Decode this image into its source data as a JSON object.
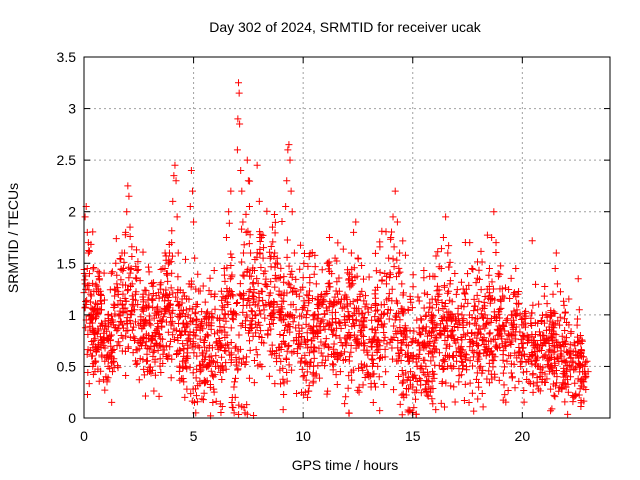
{
  "chart_data": {
    "type": "scatter",
    "title": "Day 302 of 2024, SRMTID for receiver ucak",
    "xlabel": "GPS time / hours",
    "ylabel": "SRMTID / TECUs",
    "xlim": [
      0,
      24
    ],
    "ylim": [
      0,
      3.5
    ],
    "xticks": [
      0,
      5,
      10,
      15,
      20
    ],
    "xtick_labels": [
      "0",
      "5",
      "10",
      "15",
      "20"
    ],
    "yticks": [
      0,
      0.5,
      1,
      1.5,
      2,
      2.5,
      3,
      3.5
    ],
    "ytick_labels": [
      "0",
      "0.5",
      "1",
      "1.5",
      "2",
      "2.5",
      "3",
      "3.5"
    ],
    "grid": true,
    "marker": "+",
    "color": "#ff0000",
    "series": [
      {
        "name": "SRMTID",
        "points": [
          [
            0.05,
            1.95
          ],
          [
            0.1,
            2.05
          ],
          [
            0.15,
            1.8
          ],
          [
            0.2,
            1.6
          ],
          [
            0.25,
            1.4
          ],
          [
            0.3,
            1.2
          ],
          [
            0.35,
            1.0
          ],
          [
            0.4,
            0.85
          ],
          [
            0.45,
            0.75
          ],
          [
            0.5,
            0.55
          ],
          [
            0.05,
            1.3
          ],
          [
            0.1,
            1.1
          ],
          [
            0.15,
            1.45
          ],
          [
            0.2,
            1.7
          ],
          [
            0.3,
            0.95
          ],
          [
            0.35,
            0.6
          ],
          [
            0.4,
            0.5
          ],
          [
            0.5,
            0.45
          ],
          [
            0.55,
            0.65
          ],
          [
            0.6,
            1.1
          ],
          [
            0.65,
            1.25
          ],
          [
            0.7,
            1.35
          ],
          [
            0.75,
            1.2
          ],
          [
            0.8,
            1.05
          ],
          [
            0.85,
            0.9
          ],
          [
            0.9,
            0.7
          ],
          [
            0.95,
            0.55
          ],
          [
            1.0,
            0.4
          ],
          [
            1.05,
            0.35
          ],
          [
            1.1,
            0.5
          ],
          [
            1.15,
            0.6
          ],
          [
            1.2,
            0.75
          ],
          [
            1.25,
            0.65
          ],
          [
            1.3,
            0.45
          ],
          [
            1.35,
            0.55
          ],
          [
            1.4,
            1.25
          ],
          [
            1.45,
            1.5
          ],
          [
            1.5,
            1.3
          ],
          [
            1.55,
            1.1
          ],
          [
            1.6,
            0.9
          ],
          [
            1.65,
            1.0
          ],
          [
            1.7,
            0.8
          ],
          [
            1.75,
            0.65
          ],
          [
            1.8,
            1.45
          ],
          [
            1.85,
            1.6
          ],
          [
            1.9,
            1.8
          ],
          [
            1.95,
            2.0
          ],
          [
            2.0,
            2.25
          ],
          [
            2.05,
            2.15
          ],
          [
            2.1,
            1.85
          ],
          [
            2.15,
            1.45
          ],
          [
            2.2,
            1.3
          ],
          [
            2.25,
            1.15
          ],
          [
            2.3,
            1.05
          ],
          [
            2.35,
            1.2
          ],
          [
            2.4,
            1.35
          ],
          [
            2.45,
            1.1
          ],
          [
            2.5,
            0.9
          ],
          [
            2.55,
            0.75
          ],
          [
            2.6,
            0.95
          ],
          [
            2.65,
            1.05
          ],
          [
            2.7,
            1.2
          ],
          [
            2.75,
            0.9
          ],
          [
            2.8,
            0.7
          ],
          [
            2.85,
            0.55
          ],
          [
            2.9,
            0.45
          ],
          [
            2.95,
            0.8
          ],
          [
            3.0,
            0.95
          ],
          [
            3.1,
            0.75
          ],
          [
            3.2,
            0.65
          ],
          [
            3.3,
            0.85
          ],
          [
            3.4,
            1.0
          ],
          [
            3.5,
            1.25
          ],
          [
            3.6,
            1.45
          ],
          [
            3.7,
            1.6
          ],
          [
            3.8,
            1.4
          ],
          [
            3.9,
            1.6
          ],
          [
            4.0,
            1.7
          ],
          [
            4.05,
            2.1
          ],
          [
            4.1,
            2.35
          ],
          [
            4.15,
            2.45
          ],
          [
            4.2,
            2.3
          ],
          [
            4.25,
            1.95
          ],
          [
            4.3,
            1.6
          ],
          [
            4.35,
            1.1
          ],
          [
            4.4,
            0.8
          ],
          [
            4.5,
            0.55
          ],
          [
            4.55,
            0.35
          ],
          [
            4.6,
            0.2
          ],
          [
            4.65,
            0.5
          ],
          [
            4.7,
            0.75
          ],
          [
            4.75,
            1.0
          ],
          [
            4.8,
            1.3
          ],
          [
            4.85,
            2.05
          ],
          [
            4.9,
            2.4
          ],
          [
            4.95,
            2.2
          ],
          [
            5.0,
            1.9
          ],
          [
            5.05,
            1.55
          ],
          [
            5.1,
            1.25
          ],
          [
            5.15,
            0.95
          ],
          [
            5.2,
            0.7
          ],
          [
            5.3,
            0.45
          ],
          [
            5.4,
            0.55
          ],
          [
            5.5,
            0.75
          ],
          [
            5.6,
            0.65
          ],
          [
            5.7,
            0.9
          ],
          [
            5.8,
            0.6
          ],
          [
            5.9,
            0.4
          ],
          [
            6.0,
            0.5
          ],
          [
            6.1,
            0.7
          ],
          [
            6.2,
            0.85
          ],
          [
            6.3,
            1.05
          ],
          [
            6.4,
            1.45
          ],
          [
            6.5,
            1.75
          ],
          [
            6.6,
            2.0
          ],
          [
            6.7,
            2.2
          ],
          [
            6.75,
            0.15
          ],
          [
            6.8,
            0.1
          ],
          [
            6.85,
            0.05
          ],
          [
            6.9,
            0.2
          ],
          [
            6.95,
            1.0
          ],
          [
            7.0,
            2.6
          ],
          [
            7.02,
            2.9
          ],
          [
            7.05,
            3.25
          ],
          [
            7.08,
            3.15
          ],
          [
            7.1,
            2.85
          ],
          [
            7.15,
            2.4
          ],
          [
            7.2,
            2.2
          ],
          [
            7.25,
            1.9
          ],
          [
            7.3,
            0.1
          ],
          [
            7.35,
            0.05
          ],
          [
            7.4,
            1.8
          ],
          [
            7.45,
            2.5
          ],
          [
            7.5,
            2.3
          ],
          [
            7.55,
            2.05
          ],
          [
            7.6,
            1.6
          ],
          [
            7.7,
            1.3
          ],
          [
            7.8,
            1.0
          ],
          [
            7.9,
            2.45
          ],
          [
            8.0,
            2.1
          ],
          [
            8.1,
            1.75
          ],
          [
            8.2,
            1.4
          ],
          [
            8.3,
            1.1
          ],
          [
            8.4,
            0.85
          ],
          [
            8.5,
            0.65
          ],
          [
            8.6,
            1.85
          ],
          [
            8.7,
            1.6
          ],
          [
            8.8,
            1.35
          ],
          [
            8.9,
            1.2
          ],
          [
            9.0,
            1.0
          ],
          [
            9.1,
            0.8
          ],
          [
            9.2,
            2.05
          ],
          [
            9.25,
            2.3
          ],
          [
            9.3,
            2.6
          ],
          [
            9.35,
            2.65
          ],
          [
            9.4,
            2.5
          ],
          [
            9.45,
            2.2
          ],
          [
            9.5,
            2.0
          ],
          [
            9.6,
            1.6
          ],
          [
            9.7,
            1.2
          ],
          [
            9.8,
            0.9
          ],
          [
            9.9,
            0.55
          ],
          [
            10.0,
            0.4
          ],
          [
            10.1,
            0.25
          ],
          [
            10.2,
            0.2
          ],
          [
            10.3,
            0.5
          ],
          [
            10.4,
            0.75
          ],
          [
            10.5,
            1.0
          ],
          [
            10.6,
            1.3
          ],
          [
            10.7,
            1.1
          ],
          [
            10.8,
            0.85
          ],
          [
            10.9,
            0.6
          ],
          [
            11.0,
            1.2
          ],
          [
            11.1,
            1.5
          ],
          [
            11.2,
            1.75
          ],
          [
            11.3,
            1.4
          ],
          [
            11.4,
            1.1
          ],
          [
            11.5,
            0.8
          ],
          [
            11.6,
            0.6
          ],
          [
            11.7,
            0.45
          ],
          [
            11.8,
            0.7
          ],
          [
            11.9,
            0.95
          ],
          [
            12.0,
            1.15
          ],
          [
            12.1,
            1.35
          ],
          [
            12.2,
            1.6
          ],
          [
            12.3,
            1.8
          ],
          [
            12.4,
            1.9
          ],
          [
            12.5,
            1.55
          ],
          [
            12.6,
            1.2
          ],
          [
            12.7,
            0.9
          ],
          [
            12.8,
            0.7
          ],
          [
            12.9,
            0.5
          ],
          [
            13.0,
            0.4
          ],
          [
            13.1,
            0.3
          ],
          [
            13.2,
            0.15
          ],
          [
            13.3,
            0.3
          ],
          [
            13.4,
            0.5
          ],
          [
            13.5,
            0.7
          ],
          [
            13.6,
            0.9
          ],
          [
            13.7,
            1.1
          ],
          [
            13.8,
            1.3
          ],
          [
            13.9,
            1.55
          ],
          [
            14.0,
            1.75
          ],
          [
            14.1,
            1.95
          ],
          [
            14.2,
            2.2
          ],
          [
            14.3,
            1.9
          ],
          [
            14.4,
            1.6
          ],
          [
            14.5,
            1.3
          ],
          [
            14.6,
            1.05
          ],
          [
            14.7,
            0.85
          ],
          [
            14.8,
            0.6
          ],
          [
            14.9,
            0.45
          ],
          [
            15.0,
            0.3
          ],
          [
            15.05,
            0.1
          ],
          [
            15.1,
            0.25
          ],
          [
            15.2,
            0.5
          ],
          [
            15.3,
            0.7
          ],
          [
            15.4,
            0.95
          ],
          [
            15.5,
            0.7
          ],
          [
            15.6,
            0.5
          ],
          [
            15.7,
            0.35
          ],
          [
            15.8,
            0.25
          ],
          [
            15.9,
            0.45
          ],
          [
            16.0,
            0.65
          ],
          [
            16.1,
            0.9
          ],
          [
            16.2,
            1.2
          ],
          [
            16.3,
            1.45
          ],
          [
            16.4,
            1.75
          ],
          [
            16.5,
            1.95
          ],
          [
            16.6,
            1.6
          ],
          [
            16.7,
            1.3
          ],
          [
            16.8,
            1.0
          ],
          [
            16.9,
            0.75
          ],
          [
            17.0,
            0.55
          ],
          [
            17.1,
            0.35
          ],
          [
            17.2,
            0.6
          ],
          [
            17.3,
            0.9
          ],
          [
            17.4,
            1.15
          ],
          [
            17.5,
            1.4
          ],
          [
            17.6,
            1.7
          ],
          [
            17.7,
            1.45
          ],
          [
            17.8,
            1.15
          ],
          [
            17.9,
            0.9
          ],
          [
            18.0,
            0.7
          ],
          [
            18.1,
            0.5
          ],
          [
            18.2,
            0.75
          ],
          [
            18.3,
            1.0
          ],
          [
            18.4,
            1.25
          ],
          [
            18.5,
            1.45
          ],
          [
            18.6,
            1.75
          ],
          [
            18.7,
            2.0
          ],
          [
            18.8,
            1.7
          ],
          [
            18.9,
            1.4
          ],
          [
            19.0,
            1.15
          ],
          [
            19.1,
            0.9
          ],
          [
            19.2,
            0.7
          ],
          [
            19.3,
            0.55
          ],
          [
            19.4,
            0.8
          ],
          [
            19.5,
            1.0
          ],
          [
            19.6,
            1.2
          ],
          [
            19.7,
            1.45
          ],
          [
            19.8,
            1.2
          ],
          [
            19.9,
            1.0
          ],
          [
            20.0,
            0.8
          ],
          [
            20.1,
            0.6
          ],
          [
            20.2,
            0.45
          ],
          [
            20.3,
            0.35
          ],
          [
            20.4,
            0.55
          ],
          [
            20.5,
            0.7
          ],
          [
            20.6,
            0.6
          ],
          [
            20.7,
            0.5
          ],
          [
            20.8,
            0.4
          ],
          [
            20.9,
            0.35
          ],
          [
            21.0,
            0.6
          ],
          [
            21.1,
            0.85
          ],
          [
            21.2,
            0.75
          ],
          [
            21.3,
            1.0
          ],
          [
            21.4,
            1.2
          ],
          [
            21.5,
            1.45
          ],
          [
            21.55,
            1.6
          ],
          [
            21.6,
            1.3
          ],
          [
            21.7,
            0.9
          ],
          [
            21.8,
            0.6
          ],
          [
            21.9,
            0.45
          ],
          [
            22.0,
            0.3
          ],
          [
            22.1,
            0.25
          ],
          [
            22.2,
            0.4
          ],
          [
            22.3,
            0.55
          ],
          [
            22.4,
            0.7
          ],
          [
            22.5,
            0.9
          ],
          [
            22.55,
            1.35
          ],
          [
            22.6,
            1.05
          ],
          [
            22.65,
            0.8
          ],
          [
            22.7,
            0.6
          ],
          [
            22.75,
            0.45
          ],
          [
            22.8,
            0.35
          ],
          [
            22.85,
            0.5
          ],
          [
            22.9,
            0.4
          ],
          [
            22.95,
            0.55
          ],
          [
            23.0,
            0.45
          ]
        ]
      }
    ],
    "synthetic_density": {
      "envelope_x": [
        0,
        1,
        2,
        3,
        4,
        5,
        6,
        7,
        8,
        9,
        10,
        11,
        12,
        13,
        14,
        15,
        16,
        17,
        18,
        19,
        20,
        21,
        22,
        23
      ],
      "envelope_center": [
        1.1,
        0.8,
        1.15,
        0.85,
        1.1,
        0.7,
        0.75,
        1.0,
        1.05,
        1.0,
        0.85,
        0.95,
        0.95,
        0.75,
        1.05,
        0.6,
        0.8,
        0.8,
        0.85,
        0.85,
        0.7,
        0.7,
        0.55,
        0.45
      ],
      "envelope_spread": [
        0.45,
        0.35,
        0.45,
        0.4,
        0.5,
        0.4,
        0.4,
        0.55,
        0.5,
        0.5,
        0.45,
        0.45,
        0.45,
        0.4,
        0.5,
        0.4,
        0.4,
        0.4,
        0.4,
        0.4,
        0.3,
        0.3,
        0.3,
        0.2
      ],
      "count": 2400,
      "x_end": 22.9
    }
  }
}
